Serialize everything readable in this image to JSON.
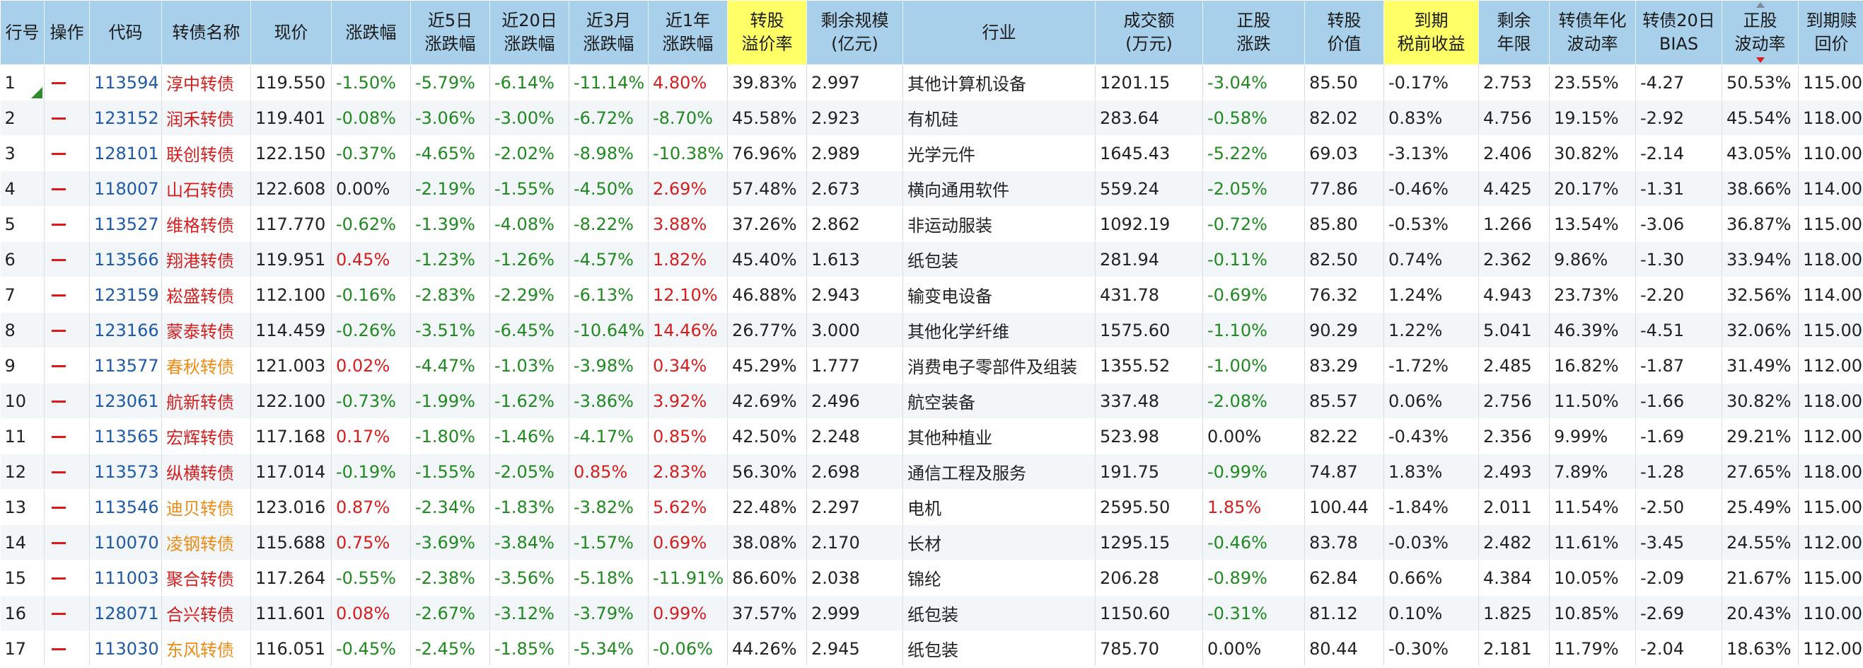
{
  "colors": {
    "header_bg": "#a9d0ea",
    "header_highlight": "#ffff66",
    "positive": "#d51f1f",
    "negative": "#1f8a1f",
    "code": "#1e5aa8",
    "name_orange": "#ef8a12"
  },
  "headers": [
    [
      "行号"
    ],
    [
      "操作"
    ],
    [
      "代码"
    ],
    [
      "转债名称"
    ],
    [
      "现价"
    ],
    [
      "涨跌幅"
    ],
    [
      "近5日",
      "涨跌幅"
    ],
    [
      "近20日",
      "涨跌幅"
    ],
    [
      "近3月",
      "涨跌幅"
    ],
    [
      "近1年",
      "涨跌幅"
    ],
    [
      "转股",
      "溢价率"
    ],
    [
      "剩余规模",
      "(亿元)"
    ],
    [
      "行业"
    ],
    [
      "成交额",
      "(万元)"
    ],
    [
      "正股",
      "涨跌"
    ],
    [
      "转股",
      "价值"
    ],
    [
      "到期",
      "税前收益"
    ],
    [
      "剩余",
      "年限"
    ],
    [
      "转债年化",
      "波动率"
    ],
    [
      "转债20日",
      "BIAS"
    ],
    [
      "正股",
      "波动率"
    ],
    [
      "到期赎",
      "回价"
    ]
  ],
  "rows": [
    {
      "no": "1",
      "code": "113594",
      "name": "淳中转债",
      "name_color": "red",
      "price": "119.550",
      "chg": "-1.50%",
      "d5": "-5.79%",
      "d20": "-6.14%",
      "m3": "-11.14%",
      "y1": "4.80%",
      "premium": "39.83%",
      "remain": "2.997",
      "industry": "其他计算机设备",
      "turnover": "1201.15",
      "stock_chg": "-3.04%",
      "conv_value": "85.50",
      "ytm": "-0.17%",
      "years": "2.753",
      "vol": "23.55%",
      "bias": "-4.27",
      "stock_vol": "50.53%",
      "redeem": "115.00"
    },
    {
      "no": "2",
      "code": "123152",
      "name": "润禾转债",
      "name_color": "red",
      "price": "119.401",
      "chg": "-0.08%",
      "d5": "-3.06%",
      "d20": "-3.00%",
      "m3": "-6.72%",
      "y1": "-8.70%",
      "premium": "45.58%",
      "remain": "2.923",
      "industry": "有机硅",
      "turnover": "283.64",
      "stock_chg": "-0.58%",
      "conv_value": "82.02",
      "ytm": "0.83%",
      "years": "4.756",
      "vol": "19.15%",
      "bias": "-2.92",
      "stock_vol": "45.54%",
      "redeem": "118.00"
    },
    {
      "no": "3",
      "code": "128101",
      "name": "联创转债",
      "name_color": "red",
      "price": "122.150",
      "chg": "-0.37%",
      "d5": "-4.65%",
      "d20": "-2.02%",
      "m3": "-8.98%",
      "y1": "-10.38%",
      "premium": "76.96%",
      "remain": "2.989",
      "industry": "光学元件",
      "turnover": "1645.43",
      "stock_chg": "-5.22%",
      "conv_value": "69.03",
      "ytm": "-3.13%",
      "years": "2.406",
      "vol": "30.82%",
      "bias": "-2.14",
      "stock_vol": "43.05%",
      "redeem": "110.00"
    },
    {
      "no": "4",
      "code": "118007",
      "name": "山石转债",
      "name_color": "red",
      "price": "122.608",
      "chg": "0.00%",
      "d5": "-2.19%",
      "d20": "-1.55%",
      "m3": "-4.50%",
      "y1": "2.69%",
      "premium": "57.48%",
      "remain": "2.673",
      "industry": "横向通用软件",
      "turnover": "559.24",
      "stock_chg": "-2.05%",
      "conv_value": "77.86",
      "ytm": "-0.46%",
      "years": "4.425",
      "vol": "20.17%",
      "bias": "-1.31",
      "stock_vol": "38.66%",
      "redeem": "114.00"
    },
    {
      "no": "5",
      "code": "113527",
      "name": "维格转债",
      "name_color": "red",
      "price": "117.770",
      "chg": "-0.62%",
      "d5": "-1.39%",
      "d20": "-4.08%",
      "m3": "-8.22%",
      "y1": "3.88%",
      "premium": "37.26%",
      "remain": "2.862",
      "industry": "非运动服装",
      "turnover": "1092.19",
      "stock_chg": "-0.72%",
      "conv_value": "85.80",
      "ytm": "-0.53%",
      "years": "1.266",
      "vol": "13.54%",
      "bias": "-3.06",
      "stock_vol": "36.87%",
      "redeem": "115.00"
    },
    {
      "no": "6",
      "code": "113566",
      "name": "翔港转债",
      "name_color": "red",
      "price": "119.951",
      "chg": "0.45%",
      "d5": "-1.23%",
      "d20": "-1.26%",
      "m3": "-4.57%",
      "y1": "1.82%",
      "premium": "45.40%",
      "remain": "1.613",
      "industry": "纸包装",
      "turnover": "281.94",
      "stock_chg": "-0.11%",
      "conv_value": "82.50",
      "ytm": "0.74%",
      "years": "2.362",
      "vol": "9.86%",
      "bias": "-1.30",
      "stock_vol": "33.94%",
      "redeem": "118.00"
    },
    {
      "no": "7",
      "code": "123159",
      "name": "崧盛转债",
      "name_color": "red",
      "price": "112.100",
      "chg": "-0.16%",
      "d5": "-2.83%",
      "d20": "-2.29%",
      "m3": "-6.13%",
      "y1": "12.10%",
      "premium": "46.88%",
      "remain": "2.943",
      "industry": "输变电设备",
      "turnover": "431.78",
      "stock_chg": "-0.69%",
      "conv_value": "76.32",
      "ytm": "1.24%",
      "years": "4.943",
      "vol": "23.73%",
      "bias": "-2.20",
      "stock_vol": "32.56%",
      "redeem": "114.00"
    },
    {
      "no": "8",
      "code": "123166",
      "name": "蒙泰转债",
      "name_color": "red",
      "price": "114.459",
      "chg": "-0.26%",
      "d5": "-3.51%",
      "d20": "-6.45%",
      "m3": "-10.64%",
      "y1": "14.46%",
      "premium": "26.77%",
      "remain": "3.000",
      "industry": "其他化学纤维",
      "turnover": "1575.60",
      "stock_chg": "-1.10%",
      "conv_value": "90.29",
      "ytm": "1.22%",
      "years": "5.041",
      "vol": "46.39%",
      "bias": "-4.51",
      "stock_vol": "32.06%",
      "redeem": "115.00"
    },
    {
      "no": "9",
      "code": "113577",
      "name": "春秋转债",
      "name_color": "orange",
      "price": "121.003",
      "chg": "0.02%",
      "d5": "-4.47%",
      "d20": "-1.03%",
      "m3": "-3.98%",
      "y1": "0.34%",
      "premium": "45.29%",
      "remain": "1.777",
      "industry": "消费电子零部件及组装",
      "turnover": "1355.52",
      "stock_chg": "-1.00%",
      "conv_value": "83.29",
      "ytm": "-1.72%",
      "years": "2.485",
      "vol": "16.82%",
      "bias": "-1.87",
      "stock_vol": "31.49%",
      "redeem": "112.00"
    },
    {
      "no": "10",
      "code": "123061",
      "name": "航新转债",
      "name_color": "red",
      "price": "122.100",
      "chg": "-0.73%",
      "d5": "-1.99%",
      "d20": "-1.62%",
      "m3": "-3.86%",
      "y1": "3.92%",
      "premium": "42.69%",
      "remain": "2.496",
      "industry": "航空装备",
      "turnover": "337.48",
      "stock_chg": "-2.08%",
      "conv_value": "85.57",
      "ytm": "0.06%",
      "years": "2.756",
      "vol": "11.50%",
      "bias": "-1.66",
      "stock_vol": "30.82%",
      "redeem": "118.00"
    },
    {
      "no": "11",
      "code": "113565",
      "name": "宏辉转债",
      "name_color": "red",
      "price": "117.168",
      "chg": "0.17%",
      "d5": "-1.80%",
      "d20": "-1.46%",
      "m3": "-4.17%",
      "y1": "0.85%",
      "premium": "42.50%",
      "remain": "2.248",
      "industry": "其他种植业",
      "turnover": "523.98",
      "stock_chg": "0.00%",
      "conv_value": "82.22",
      "ytm": "-0.43%",
      "years": "2.356",
      "vol": "9.99%",
      "bias": "-1.69",
      "stock_vol": "29.21%",
      "redeem": "112.00"
    },
    {
      "no": "12",
      "code": "113573",
      "name": "纵横转债",
      "name_color": "red",
      "price": "117.014",
      "chg": "-0.19%",
      "d5": "-1.55%",
      "d20": "-2.05%",
      "m3": "0.85%",
      "y1": "2.83%",
      "premium": "56.30%",
      "remain": "2.698",
      "industry": "通信工程及服务",
      "turnover": "191.75",
      "stock_chg": "-0.99%",
      "conv_value": "74.87",
      "ytm": "1.83%",
      "years": "2.493",
      "vol": "7.89%",
      "bias": "-1.28",
      "stock_vol": "27.65%",
      "redeem": "118.00"
    },
    {
      "no": "13",
      "code": "113546",
      "name": "迪贝转债",
      "name_color": "orange",
      "price": "123.016",
      "chg": "0.87%",
      "d5": "-2.34%",
      "d20": "-1.83%",
      "m3": "-3.82%",
      "y1": "5.62%",
      "premium": "22.48%",
      "remain": "2.297",
      "industry": "电机",
      "turnover": "2595.50",
      "stock_chg": "1.85%",
      "conv_value": "100.44",
      "ytm": "-1.84%",
      "years": "2.011",
      "vol": "11.54%",
      "bias": "-2.50",
      "stock_vol": "25.49%",
      "redeem": "115.00"
    },
    {
      "no": "14",
      "code": "110070",
      "name": "凌钢转债",
      "name_color": "orange",
      "price": "115.688",
      "chg": "0.75%",
      "d5": "-3.69%",
      "d20": "-3.84%",
      "m3": "-1.57%",
      "y1": "0.69%",
      "premium": "38.08%",
      "remain": "2.170",
      "industry": "长材",
      "turnover": "1295.15",
      "stock_chg": "-0.46%",
      "conv_value": "83.78",
      "ytm": "-0.03%",
      "years": "2.482",
      "vol": "11.61%",
      "bias": "-3.45",
      "stock_vol": "24.55%",
      "redeem": "112.00"
    },
    {
      "no": "15",
      "code": "111003",
      "name": "聚合转债",
      "name_color": "red",
      "price": "117.264",
      "chg": "-0.55%",
      "d5": "-2.38%",
      "d20": "-3.56%",
      "m3": "-5.18%",
      "y1": "-11.91%",
      "premium": "86.60%",
      "remain": "2.038",
      "industry": "锦纶",
      "turnover": "206.28",
      "stock_chg": "-0.89%",
      "conv_value": "62.84",
      "ytm": "0.66%",
      "years": "4.384",
      "vol": "10.05%",
      "bias": "-2.09",
      "stock_vol": "21.67%",
      "redeem": "115.00"
    },
    {
      "no": "16",
      "code": "128071",
      "name": "合兴转债",
      "name_color": "red",
      "price": "111.601",
      "chg": "0.08%",
      "d5": "-2.67%",
      "d20": "-3.12%",
      "m3": "-3.79%",
      "y1": "0.99%",
      "premium": "37.57%",
      "remain": "2.999",
      "industry": "纸包装",
      "turnover": "1150.60",
      "stock_chg": "-0.31%",
      "conv_value": "81.12",
      "ytm": "0.10%",
      "years": "1.825",
      "vol": "10.85%",
      "bias": "-2.69",
      "stock_vol": "20.43%",
      "redeem": "110.00"
    },
    {
      "no": "17",
      "code": "113030",
      "name": "东风转债",
      "name_color": "orange",
      "price": "116.051",
      "chg": "-0.45%",
      "d5": "-2.45%",
      "d20": "-1.85%",
      "m3": "-5.34%",
      "y1": "-0.06%",
      "premium": "44.26%",
      "remain": "2.945",
      "industry": "纸包装",
      "turnover": "785.70",
      "stock_chg": "0.00%",
      "conv_value": "80.44",
      "ytm": "-0.30%",
      "years": "2.181",
      "vol": "11.79%",
      "bias": "-2.04",
      "stock_vol": "18.63%",
      "redeem": "112.00"
    }
  ]
}
